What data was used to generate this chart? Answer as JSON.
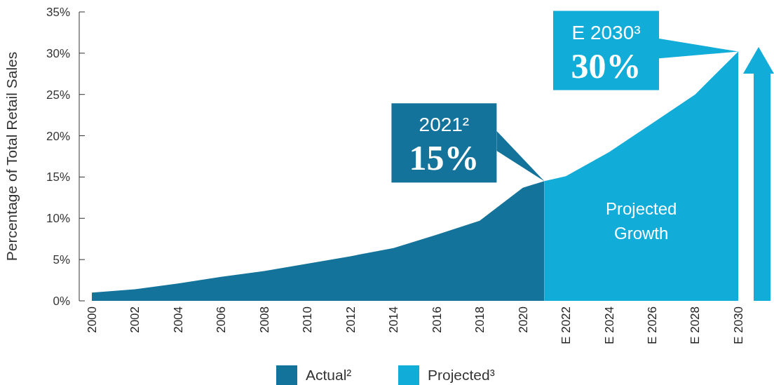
{
  "chart_data": {
    "type": "area",
    "ylabel": "Percentage of Total Retail Sales",
    "xlim": [
      2000,
      2030
    ],
    "xticks": [
      2000,
      2002,
      2004,
      2006,
      2008,
      2010,
      2012,
      2014,
      2016,
      2018,
      2020,
      {
        "value": 2022,
        "label": "E 2022"
      },
      {
        "value": 2024,
        "label": "E 2024"
      },
      {
        "value": 2026,
        "label": "E 2026"
      },
      {
        "value": 2028,
        "label": "E 2028"
      },
      {
        "value": 2030,
        "label": "E 2030"
      }
    ],
    "ylim": [
      0,
      35
    ],
    "yticks": [
      {
        "value": 0,
        "label": "0%"
      },
      {
        "value": 5,
        "label": "5%"
      },
      {
        "value": 10,
        "label": "10%"
      },
      {
        "value": 15,
        "label": "15%"
      },
      {
        "value": 20,
        "label": "20%"
      },
      {
        "value": 25,
        "label": "25%"
      },
      {
        "value": 30,
        "label": "30%"
      },
      {
        "value": 35,
        "label": "35%"
      }
    ],
    "series": [
      {
        "name": "Actual²",
        "color": "#14739a",
        "x": [
          2000,
          2002,
          2004,
          2006,
          2008,
          2010,
          2012,
          2014,
          2016,
          2018,
          2020,
          2021
        ],
        "values": [
          1.0,
          1.4,
          2.1,
          2.9,
          3.6,
          4.5,
          5.4,
          6.4,
          8.0,
          9.7,
          13.7,
          14.5
        ]
      },
      {
        "name": "Projected³",
        "color": "#12acd8",
        "x": [
          2021,
          2022,
          2024,
          2026,
          2028,
          2030
        ],
        "values": [
          14.5,
          15.1,
          18.0,
          21.5,
          25.0,
          30.2
        ]
      }
    ],
    "annotations": [
      {
        "text": "2021²\n15%",
        "x": 2021,
        "y": 14.5
      },
      {
        "text": "E 2030³\n30%",
        "x": 2030,
        "y": 30.2
      },
      "Projected\nGrowth"
    ],
    "legend": "bottom",
    "grid": false
  }
}
